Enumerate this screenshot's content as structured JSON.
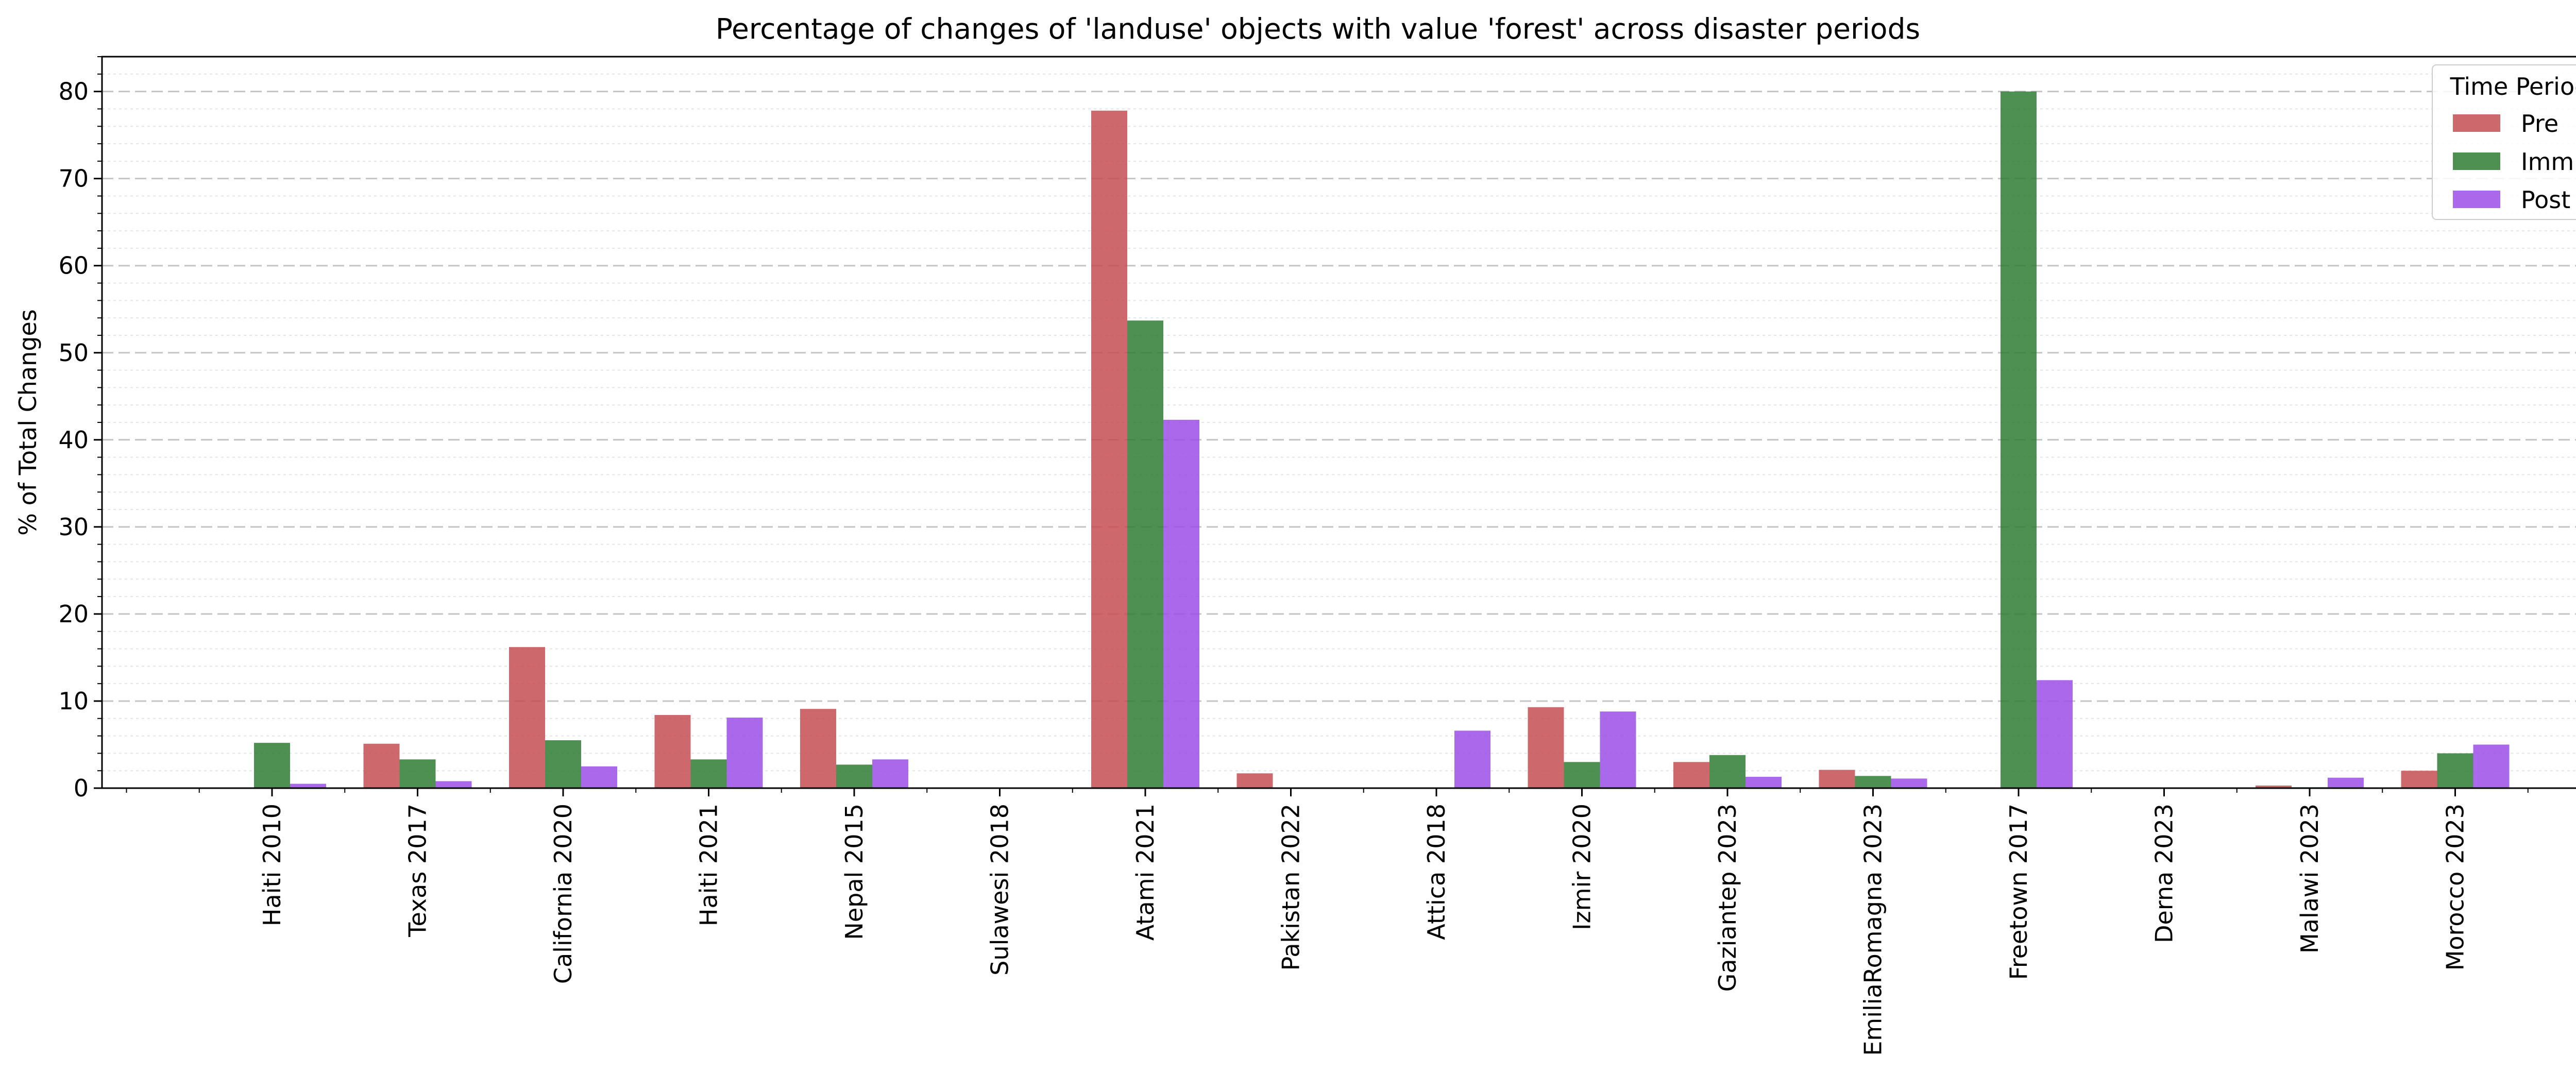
{
  "chart_data": {
    "type": "bar",
    "title": "Percentage of changes of 'landuse' objects with value 'forest' across disaster periods",
    "xlabel": "",
    "ylabel": "% of Total Changes",
    "ylim": [
      0,
      84
    ],
    "yticks": [
      0,
      10,
      20,
      30,
      40,
      50,
      60,
      70,
      80
    ],
    "grid": true,
    "legend": {
      "title": "Time Period",
      "position": "top-right"
    },
    "categories": [
      "Haiti 2010",
      "Texas 2017",
      "California 2020",
      "Haiti 2021",
      "Nepal 2015",
      "Sulawesi 2018",
      "Atami 2021",
      "Pakistan 2022",
      "Attica 2018",
      "Izmir 2020",
      "Gaziantep 2023",
      "EmiliaRomagna 2023",
      "Freetown 2017",
      "Derna 2023",
      "Malawi 2023",
      "Morocco 2023"
    ],
    "series": [
      {
        "name": "Pre",
        "color": "#c44e52",
        "values": [
          0,
          5.1,
          16.2,
          8.4,
          9.1,
          0,
          77.8,
          1.7,
          0,
          9.3,
          3.0,
          2.1,
          0,
          0,
          0.3,
          2.0
        ]
      },
      {
        "name": "Imm",
        "color": "#2e7d32",
        "values": [
          5.2,
          3.3,
          5.5,
          3.3,
          2.7,
          0,
          53.7,
          0,
          0,
          3.0,
          3.8,
          1.4,
          80.0,
          0,
          0.1,
          4.0
        ]
      },
      {
        "name": "Post",
        "color": "#9b4de6",
        "values": [
          0.5,
          0.8,
          2.5,
          8.1,
          3.3,
          0,
          42.3,
          0,
          6.6,
          8.8,
          1.3,
          1.1,
          12.4,
          0,
          1.2,
          5.0
        ]
      }
    ]
  }
}
